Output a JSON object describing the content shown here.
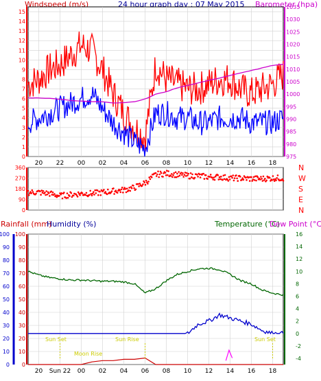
{
  "header": {
    "title": "24 hour graph day : 07 May 2015",
    "windspeed_label": "Windspeed (m/s)",
    "barometer_label": "Barometer (hpa)"
  },
  "bottom_labels": {
    "rainfall": "Rainfall (mm)",
    "humidity": "Humidity (%)",
    "temperature": "Temperature (°C)",
    "dewpoint": "Dew Point (°C)"
  },
  "annotations": {
    "sun_set_1": "Sun Set",
    "sun_rise": "Sun Rise",
    "sun_set_2": "Sun Set",
    "moon_rise": "Moon Rise",
    "sun_22_label": "Sun 22",
    "sun_22_dup": "Sun 22"
  },
  "colors": {
    "windspeed": "#ff0000",
    "windgust": "#ff0000",
    "wind_avg": "#0000ff",
    "barometer": "#cc00cc",
    "direction": "#ff0000",
    "humidity": "#0000cc",
    "temperature": "#006600",
    "dewpoint": "#0000cc",
    "rainfall": "#cc0000",
    "rain_rate": "#ff00ff",
    "sun": "#cccc00",
    "axis": "#000000",
    "grid": "#d0d0d0"
  },
  "chart_data": [
    {
      "type": "line",
      "title": "24 hour graph day : 07 May 2015",
      "x_ticks": [
        "20",
        "22",
        "00",
        "02",
        "04",
        "06",
        "08",
        "10",
        "12",
        "14",
        "16",
        "18",
        "20",
        "22",
        "00"
      ],
      "y_left_label": "Windspeed (m/s)",
      "y_left_ticks": [
        0,
        1,
        2,
        3,
        4,
        5,
        6,
        7,
        8,
        9,
        10,
        11,
        12,
        13,
        14,
        15
      ],
      "y_left_range": [
        0,
        15.5
      ],
      "y_right_label": "Barometer (hpa)",
      "y_right_ticks": [
        975,
        980,
        985,
        990,
        995,
        1000,
        1005,
        1010,
        1015,
        1020,
        1025,
        1030,
        1035
      ],
      "y_right_range": [
        975,
        1035
      ],
      "x_range_hours": [
        19,
        43
      ],
      "grid": true,
      "series": [
        {
          "name": "Windspeed (m/s)",
          "x": [
            19,
            20,
            21,
            22,
            23,
            24,
            25,
            26,
            27,
            28,
            29,
            30,
            31,
            32,
            33,
            34,
            35,
            36,
            37,
            38,
            39,
            40,
            41,
            42,
            43
          ],
          "y": [
            3.5,
            4.0,
            4.5,
            5.0,
            5.5,
            6.0,
            6.5,
            5.0,
            3.5,
            2.5,
            1.5,
            0.8,
            4.5,
            4.5,
            4.0,
            4.0,
            3.5,
            3.5,
            4.0,
            4.0,
            4.0,
            3.5,
            3.5,
            3.5,
            4.0
          ]
        },
        {
          "name": "Wind Gust (m/s)",
          "x": [
            19,
            20,
            21,
            22,
            23,
            24,
            25,
            26,
            27,
            28,
            29,
            30,
            31,
            32,
            33,
            34,
            35,
            36,
            37,
            38,
            39,
            40,
            41,
            42,
            43
          ],
          "y": [
            7.5,
            8.0,
            9.0,
            9.5,
            10.5,
            11.5,
            11.0,
            9.0,
            6.5,
            4.5,
            3.0,
            2.0,
            9.5,
            8.0,
            7.5,
            7.0,
            7.0,
            7.5,
            8.0,
            8.0,
            7.0,
            6.5,
            7.0,
            7.5,
            8.5
          ]
        },
        {
          "name": "Barometer (hpa)",
          "x": [
            19,
            20,
            21,
            22,
            23,
            24,
            25,
            26,
            27,
            28,
            29,
            30,
            31,
            32,
            33,
            34,
            35,
            36,
            37,
            38,
            39,
            40,
            41,
            42,
            43
          ],
          "y": [
            998.5,
            998.5,
            998.3,
            998.0,
            997.5,
            997.2,
            997.0,
            997.0,
            996.5,
            996.6,
            997.0,
            998.0,
            1000,
            1001,
            1002.5,
            1003.5,
            1004.5,
            1005.5,
            1006.5,
            1007.5,
            1008.5,
            1009.5,
            1010.5,
            1011.5,
            1012.0
          ]
        }
      ]
    },
    {
      "type": "scatter",
      "title": "",
      "x_ticks": [
        "20",
        "22",
        "00",
        "02",
        "04",
        "06",
        "08",
        "10",
        "12",
        "14",
        "16",
        "18",
        "20",
        "22",
        "00"
      ],
      "y_left_ticks": [
        0,
        90,
        180,
        270,
        360
      ],
      "y_left_range": [
        0,
        360
      ],
      "y_right_ticks": [
        "N",
        "W",
        "S",
        "E",
        "N"
      ],
      "x_range_hours": [
        19,
        43
      ],
      "series": [
        {
          "name": "Wind Direction",
          "x": [
            19,
            20,
            21,
            22,
            23,
            24,
            25,
            26,
            27,
            28,
            29,
            30,
            31,
            32,
            33,
            34,
            35,
            36,
            37,
            38,
            39,
            40,
            41,
            42,
            43
          ],
          "y": [
            150,
            150,
            140,
            120,
            130,
            140,
            140,
            150,
            160,
            170,
            190,
            230,
            300,
            310,
            300,
            290,
            290,
            280,
            280,
            270,
            270,
            265,
            265,
            270,
            270
          ]
        }
      ]
    },
    {
      "type": "line",
      "title": "",
      "x_ticks": [
        "20",
        "Sun 22",
        "00",
        "02",
        "04",
        "06",
        "08",
        "10",
        "12",
        "14",
        "16",
        "18",
        "20",
        "22",
        "00"
      ],
      "y_left_label": "Rainfall (mm) / Humidity (%)",
      "y_left_ticks": [
        0,
        10,
        20,
        30,
        40,
        50,
        60,
        70,
        80,
        90,
        100
      ],
      "y_left_range": [
        0,
        100
      ],
      "y_right_label": "Temperature (°C) / Dew Point (°C)",
      "y_right_ticks": [
        -4,
        -2,
        0,
        2,
        4,
        6,
        8,
        10,
        12,
        14,
        16
      ],
      "y_right_range": [
        -5,
        16
      ],
      "x_range_hours": [
        19,
        43
      ],
      "series": [
        {
          "name": "Temperature (°C)",
          "x": [
            19,
            20,
            21,
            22,
            23,
            24,
            25,
            26,
            27,
            28,
            29,
            30,
            31,
            32,
            33,
            34,
            35,
            36,
            37,
            38,
            39,
            40,
            41,
            42,
            43
          ],
          "y": [
            10,
            9.4,
            9.0,
            8.8,
            8.6,
            8.6,
            8.5,
            8.4,
            8.4,
            8.3,
            8.0,
            6.5,
            7.2,
            8.5,
            9.5,
            10.0,
            10.4,
            10.5,
            10.3,
            9.5,
            8.5,
            8.0,
            7.0,
            6.5,
            6.2
          ]
        },
        {
          "name": "Dew Point (°C)",
          "x": [
            19,
            20,
            21,
            22,
            23,
            24,
            25,
            26,
            27,
            28,
            29,
            30,
            31,
            32,
            33,
            34,
            35,
            36,
            37,
            38,
            39,
            40,
            41,
            42,
            43
          ],
          "y": [
            -3.0,
            -3.0,
            -3.0,
            -3.0,
            -3.0,
            -3.0,
            -3.0,
            -3.0,
            -3.0,
            -3.0,
            -3.0,
            -3.0,
            -3.0,
            -2.0,
            -1.0,
            0.0,
            1.5,
            2.0,
            3.0,
            2.5,
            2.0,
            1.5,
            0.5,
            0.0,
            0.0
          ]
        },
        {
          "name": "Rainfall (mm)",
          "x": [
            19,
            20,
            21,
            22,
            23,
            24,
            25,
            26,
            27,
            28,
            29,
            30,
            31,
            32,
            33,
            34,
            35,
            36,
            37,
            38,
            39,
            40,
            41,
            42,
            43
          ],
          "y": [
            0,
            0,
            0,
            0,
            0,
            0,
            2,
            3,
            3,
            4,
            4,
            5,
            0,
            0,
            0,
            0,
            0,
            0,
            0,
            0,
            0,
            0,
            0,
            0,
            0
          ]
        },
        {
          "name": "Rain Rate",
          "x": [
            37.6,
            37.9,
            38.2
          ],
          "y": [
            3,
            11,
            5
          ]
        }
      ]
    }
  ]
}
